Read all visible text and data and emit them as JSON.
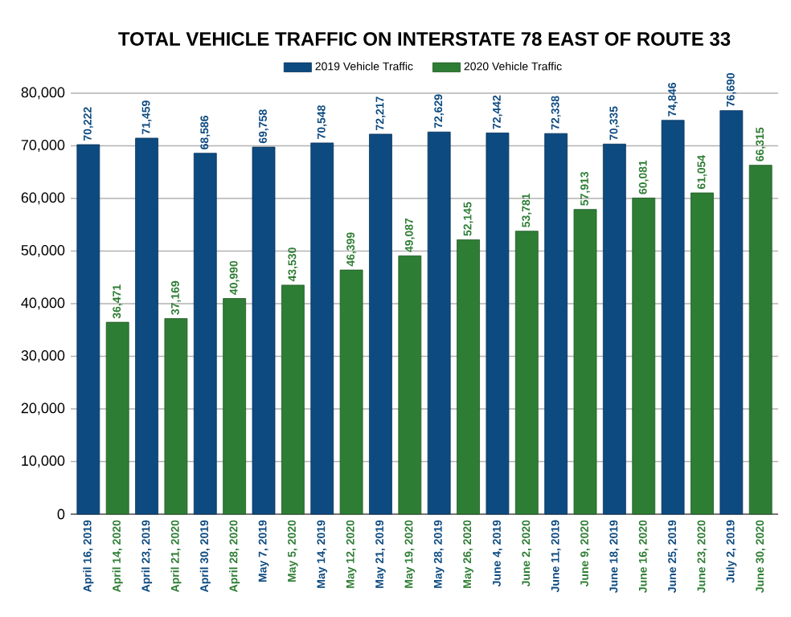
{
  "chart_data": {
    "type": "bar",
    "title": "TOTAL VEHICLE TRAFFIC ON INTERSTATE 78 EAST OF ROUTE 33",
    "categories": [
      "April 16, 2019",
      "April 14, 2020",
      "April 23, 2019",
      "April 21, 2020",
      "April 30, 2019",
      "April 28, 2020",
      "May 7, 2019",
      "May 5, 2020",
      "May 14, 2019",
      "May 12, 2020",
      "May 21, 2019",
      "May 19, 2020",
      "May 28, 2019",
      "May 26, 2020",
      "June 4, 2019",
      "June 2, 2020",
      "June 11, 2019",
      "June 9, 2020",
      "June 18, 2019",
      "June 16, 2020",
      "June 25, 2019",
      "June 23, 2020",
      "July 2, 2019",
      "June 30, 2020"
    ],
    "series": [
      {
        "name": "2019 Vehicle Traffic",
        "color": "#0d4a80",
        "values": [
          70222,
          null,
          71459,
          null,
          68586,
          null,
          69758,
          null,
          70548,
          null,
          72217,
          null,
          72629,
          null,
          72442,
          null,
          72338,
          null,
          70335,
          null,
          74846,
          null,
          76690,
          null
        ],
        "value_labels": [
          "70,222",
          null,
          "71,459",
          null,
          "68,586",
          null,
          "69,758",
          null,
          "70,548",
          null,
          "72,217",
          null,
          "72,629",
          null,
          "72,442",
          null,
          "72,338",
          null,
          "70,335",
          null,
          "74,846",
          null,
          "76,690",
          null
        ]
      },
      {
        "name": "2020 Vehicle Traffic",
        "color": "#2e7d34",
        "values": [
          null,
          36471,
          null,
          37169,
          null,
          40990,
          null,
          43530,
          null,
          46399,
          null,
          49087,
          null,
          52145,
          null,
          53781,
          null,
          57913,
          null,
          60081,
          null,
          61054,
          null,
          66315
        ],
        "value_labels": [
          null,
          "36,471",
          null,
          "37,169",
          null,
          "40,990",
          null,
          "43,530",
          null,
          "46,399",
          null,
          "49,087",
          null,
          "52,145",
          null,
          "53,781",
          null,
          "57,913",
          null,
          "60,081",
          null,
          "61,054",
          null,
          "66,315"
        ]
      }
    ],
    "ylim": [
      0,
      80000
    ],
    "yticks": [
      {
        "value": 0,
        "label": "0"
      },
      {
        "value": 10000,
        "label": "10,000"
      },
      {
        "value": 20000,
        "label": "20,000"
      },
      {
        "value": 30000,
        "label": "30,000"
      },
      {
        "value": 40000,
        "label": "40,000"
      },
      {
        "value": 50000,
        "label": "50,000"
      },
      {
        "value": 60000,
        "label": "60,000"
      },
      {
        "value": 70000,
        "label": "70,000"
      },
      {
        "value": 80000,
        "label": "80,000"
      }
    ],
    "grid": "y",
    "legend": "top"
  }
}
